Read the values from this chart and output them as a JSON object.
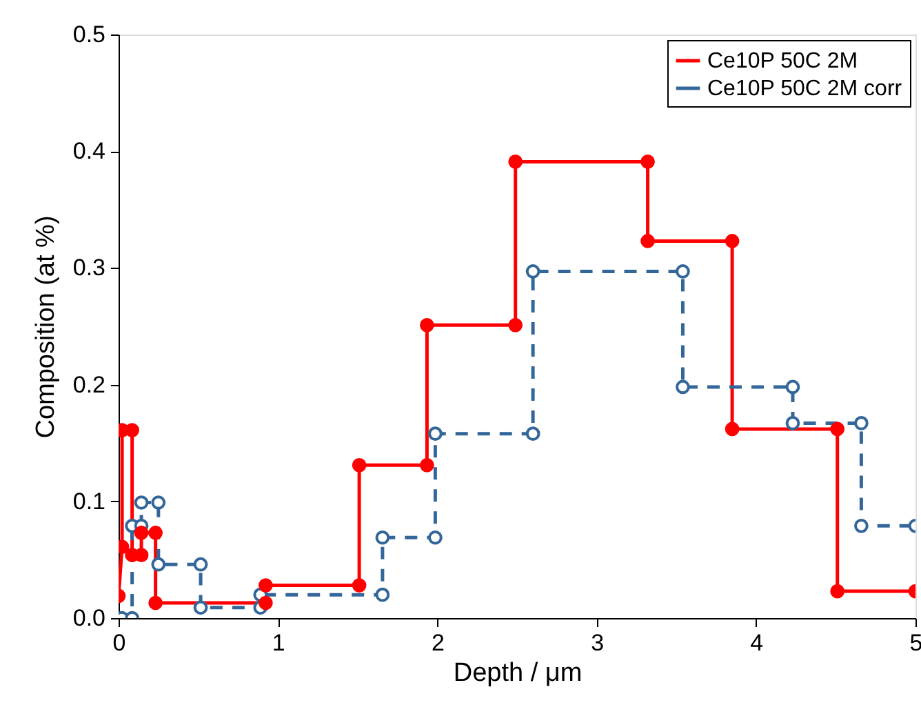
{
  "chart_data": {
    "type": "line",
    "xlabel": "Depth / μm",
    "ylabel": "Composition (at %)",
    "xlim": [
      0,
      5
    ],
    "xticks": [
      0,
      1,
      2,
      3,
      4,
      5
    ],
    "ylim": [
      0,
      0.5
    ],
    "yticks": [
      {
        "value": 0,
        "label": "0.0"
      },
      0.1,
      0.2,
      0.3,
      0.4,
      0.5
    ],
    "grid": false,
    "legend": "top right",
    "marker": "circle",
    "series": [
      {
        "name": "Ce10P 50C 2M",
        "color": "#ff0000",
        "line_style": "solid",
        "x": [
          0,
          0.022,
          0.022,
          0.085,
          0.085,
          0.143,
          0.143,
          0.232,
          0.232,
          0.923,
          0.923,
          1.51,
          1.51,
          1.935,
          1.935,
          2.49,
          2.49,
          3.32,
          3.32,
          3.85,
          3.85,
          4.51,
          4.51,
          5
        ],
        "values": [
          0.019,
          0.061,
          0.161,
          0.161,
          0.054,
          0.054,
          0.073,
          0.073,
          0.013,
          0.013,
          0.028,
          0.028,
          0.131,
          0.131,
          0.251,
          0.251,
          0.391,
          0.391,
          0.323,
          0.323,
          0.162,
          0.162,
          0.023,
          0.023
        ]
      },
      {
        "name": "Ce10P 50C 2M corr",
        "color": "#336699",
        "line_style": "dashed",
        "x": [
          0.02,
          0.085,
          0.085,
          0.143,
          0.143,
          0.25,
          0.25,
          0.515,
          0.515,
          0.89,
          0.89,
          1.656,
          1.656,
          1.987,
          1.987,
          2.6,
          2.6,
          3.54,
          3.54,
          4.23,
          4.23,
          4.66,
          4.66,
          5
        ],
        "values": [
          0,
          0,
          0.079,
          0.079,
          0.099,
          0.099,
          0.046,
          0.046,
          0.009,
          0.009,
          0.02,
          0.02,
          0.069,
          0.069,
          0.158,
          0.158,
          0.297,
          0.297,
          0.198,
          0.198,
          0.167,
          0.167,
          0.079,
          0.079
        ]
      }
    ]
  }
}
